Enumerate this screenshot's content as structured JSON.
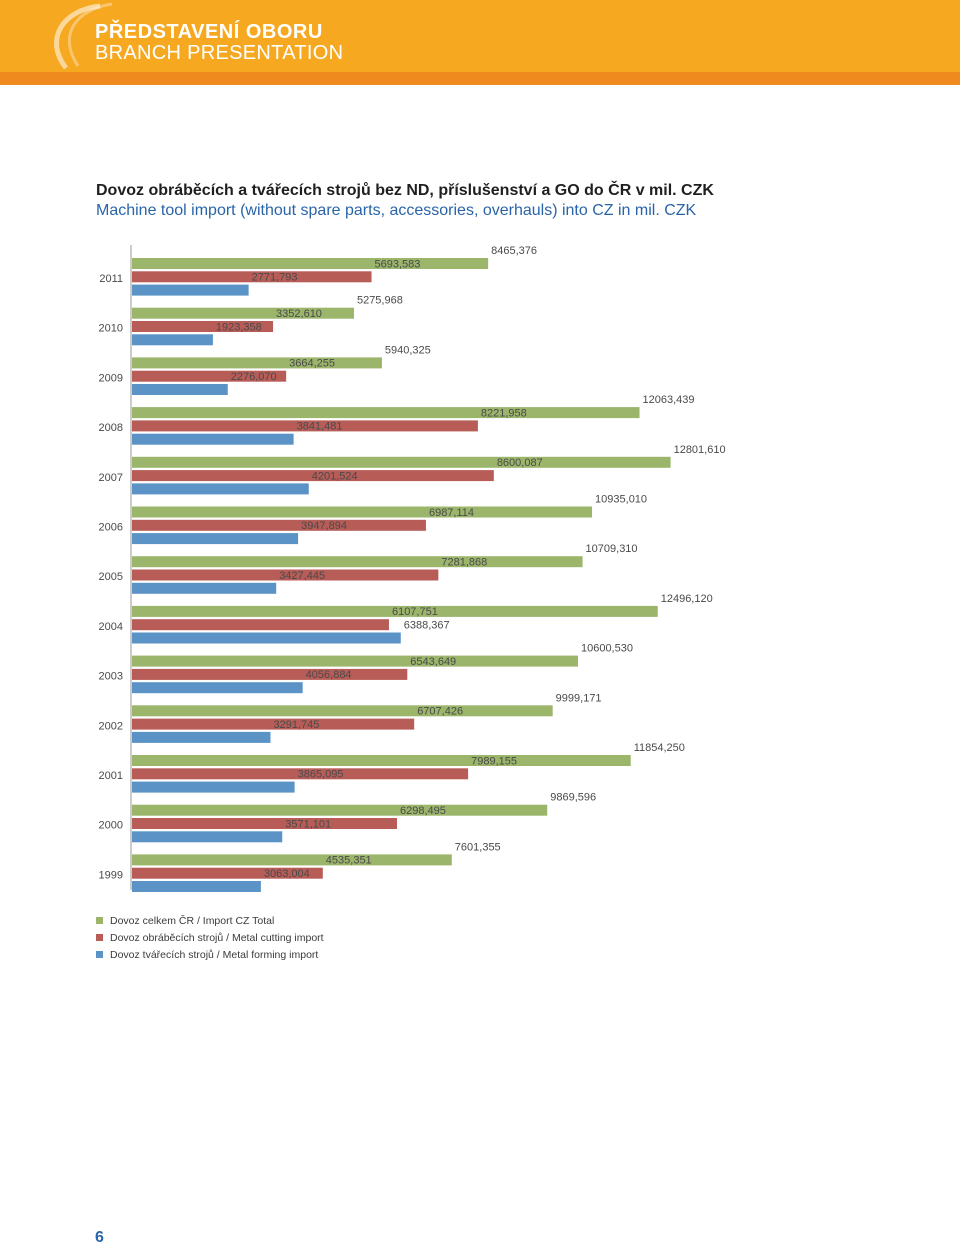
{
  "header": {
    "title_cz": "PŘEDSTAVENÍ OBORU",
    "title_en": "BRANCH PRESENTATION",
    "background_color": "#f6a821",
    "strip_color": "#ef8a1f"
  },
  "page_number": "6",
  "chart_data": {
    "type": "bar",
    "orientation": "horizontal",
    "title": "Dovoz obráběcích a tvářecích strojů bez ND, příslušenství a GO do ČR v mil. CZK",
    "subtitle": "Machine tool import (without spare parts, accessories, overhauls) into CZ in mil. CZK",
    "xlabel": "",
    "ylabel": "",
    "xlim": [
      0,
      14000
    ],
    "grid": false,
    "legend_position": "bottom-left",
    "categories": [
      "2011",
      "2010",
      "2009",
      "2008",
      "2007",
      "2006",
      "2005",
      "2004",
      "2003",
      "2002",
      "2001",
      "2000",
      "1999"
    ],
    "series": [
      {
        "name": "Dovoz celkem ČR / Import CZ Total",
        "color": "#9bb56b",
        "values": [
          8465.376,
          5275.968,
          5940.325,
          12063.439,
          12801.61,
          10935.01,
          10709.31,
          12496.12,
          10600.53,
          9999.171,
          11854.25,
          9869.596,
          7601.355
        ],
        "labels": [
          "8465,376",
          "5275,968",
          "5940,325",
          "12063,439",
          "12801,610",
          "10935,010",
          "10709,310",
          "12496,120",
          "10600,530",
          "9999,171",
          "11854,250",
          "9869,596",
          "7601,355"
        ]
      },
      {
        "name": "Dovoz obráběcích strojů / Metal cutting import",
        "color": "#b85c57",
        "values": [
          5693.583,
          3352.61,
          3664.255,
          8221.958,
          8600.087,
          6987.114,
          7281.868,
          6107.751,
          6543.649,
          6707.426,
          7989.155,
          6298.495,
          4535.351
        ],
        "labels": [
          "5693,583",
          "3352,610",
          "3664,255",
          "8221,958",
          "8600,087",
          "6987,114",
          "7281,868",
          "6107,751",
          "6543,649",
          "6707,426",
          "7989,155",
          "6298,495",
          "4535,351"
        ]
      },
      {
        "name": "Dovoz tvářecích strojů / Metal forming import",
        "color": "#5b93c6",
        "values": [
          2771.793,
          1923.358,
          2276.07,
          3841.481,
          4201.524,
          3947.894,
          3427.445,
          6388.367,
          4056.884,
          3291.745,
          3865.095,
          3571.101,
          3063.004
        ],
        "labels": [
          "2771,793",
          "1923,358",
          "2276,070",
          "3841,481",
          "4201,524",
          "3947,894",
          "3427,445",
          "6388,367",
          "4056,884",
          "3291,745",
          "3865,095",
          "3571,101",
          "3063,004"
        ]
      }
    ]
  }
}
